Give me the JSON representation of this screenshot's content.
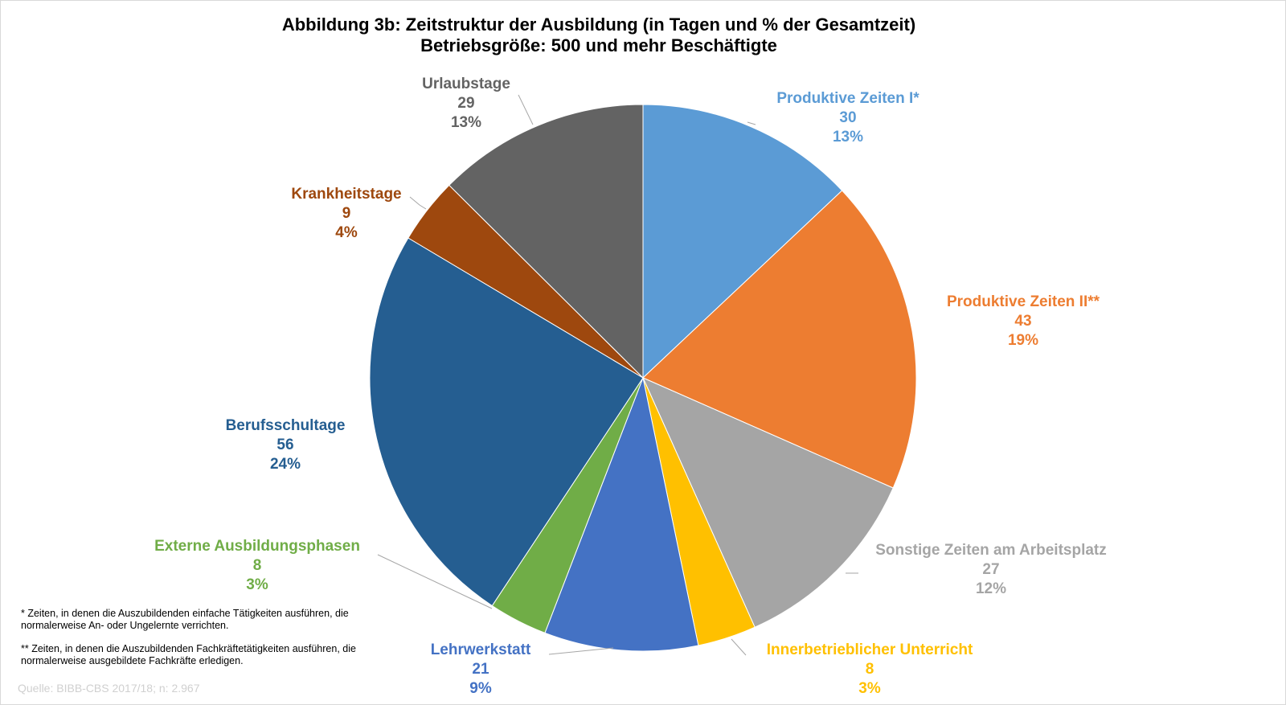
{
  "title_line1": "Abbildung 3b: Zeitstruktur der Ausbildung (in Tagen und % der Gesamtzeit)",
  "title_line2": "Betriebsgröße: 500 und mehr Beschäftigte",
  "footnote1": "* Zeiten, in denen die Auszubildenden  einfache Tätigkeiten ausführen, die normalerweise An- oder Ungelernte verrichten.",
  "footnote2": "** Zeiten, in denen die Auszubildenden  Fachkräftetätigkeiten ausführen, die normalerweise ausgebildete Fachkräfte erledigen.",
  "source": "Quelle: BIBB-CBS 2017/18; n: 2.967",
  "chart_data": {
    "type": "pie",
    "title": "Abbildung 3b: Zeitstruktur der Ausbildung (in Tagen und % der Gesamtzeit)",
    "subtitle": "Betriebsgröße: 500 und mehr Beschäftigte",
    "start_angle_deg": 0,
    "direction": "clockwise",
    "slices": [
      {
        "label": "Produktive Zeiten I*",
        "value": 30,
        "percent": "13%",
        "color": "#5b9bd5"
      },
      {
        "label": "Produktive Zeiten II**",
        "value": 43,
        "percent": "19%",
        "color": "#ed7d31"
      },
      {
        "label": "Sonstige Zeiten am Arbeitsplatz",
        "value": 27,
        "percent": "12%",
        "color": "#a5a5a5"
      },
      {
        "label": "Innerbetrieblicher Unterricht",
        "value": 8,
        "percent": "3%",
        "color": "#ffc000"
      },
      {
        "label": "Lehrwerkstatt",
        "value": 21,
        "percent": "9%",
        "color": "#4472c4"
      },
      {
        "label": "Externe Ausbildungsphasen",
        "value": 8,
        "percent": "3%",
        "color": "#70ad47"
      },
      {
        "label": "Berufsschultage",
        "value": 56,
        "percent": "24%",
        "color": "#255e91"
      },
      {
        "label": "Krankheitstage",
        "value": 9,
        "percent": "4%",
        "color": "#9e480e"
      },
      {
        "label": "Urlaubstage",
        "value": 29,
        "percent": "13%",
        "color": "#636363"
      }
    ]
  }
}
